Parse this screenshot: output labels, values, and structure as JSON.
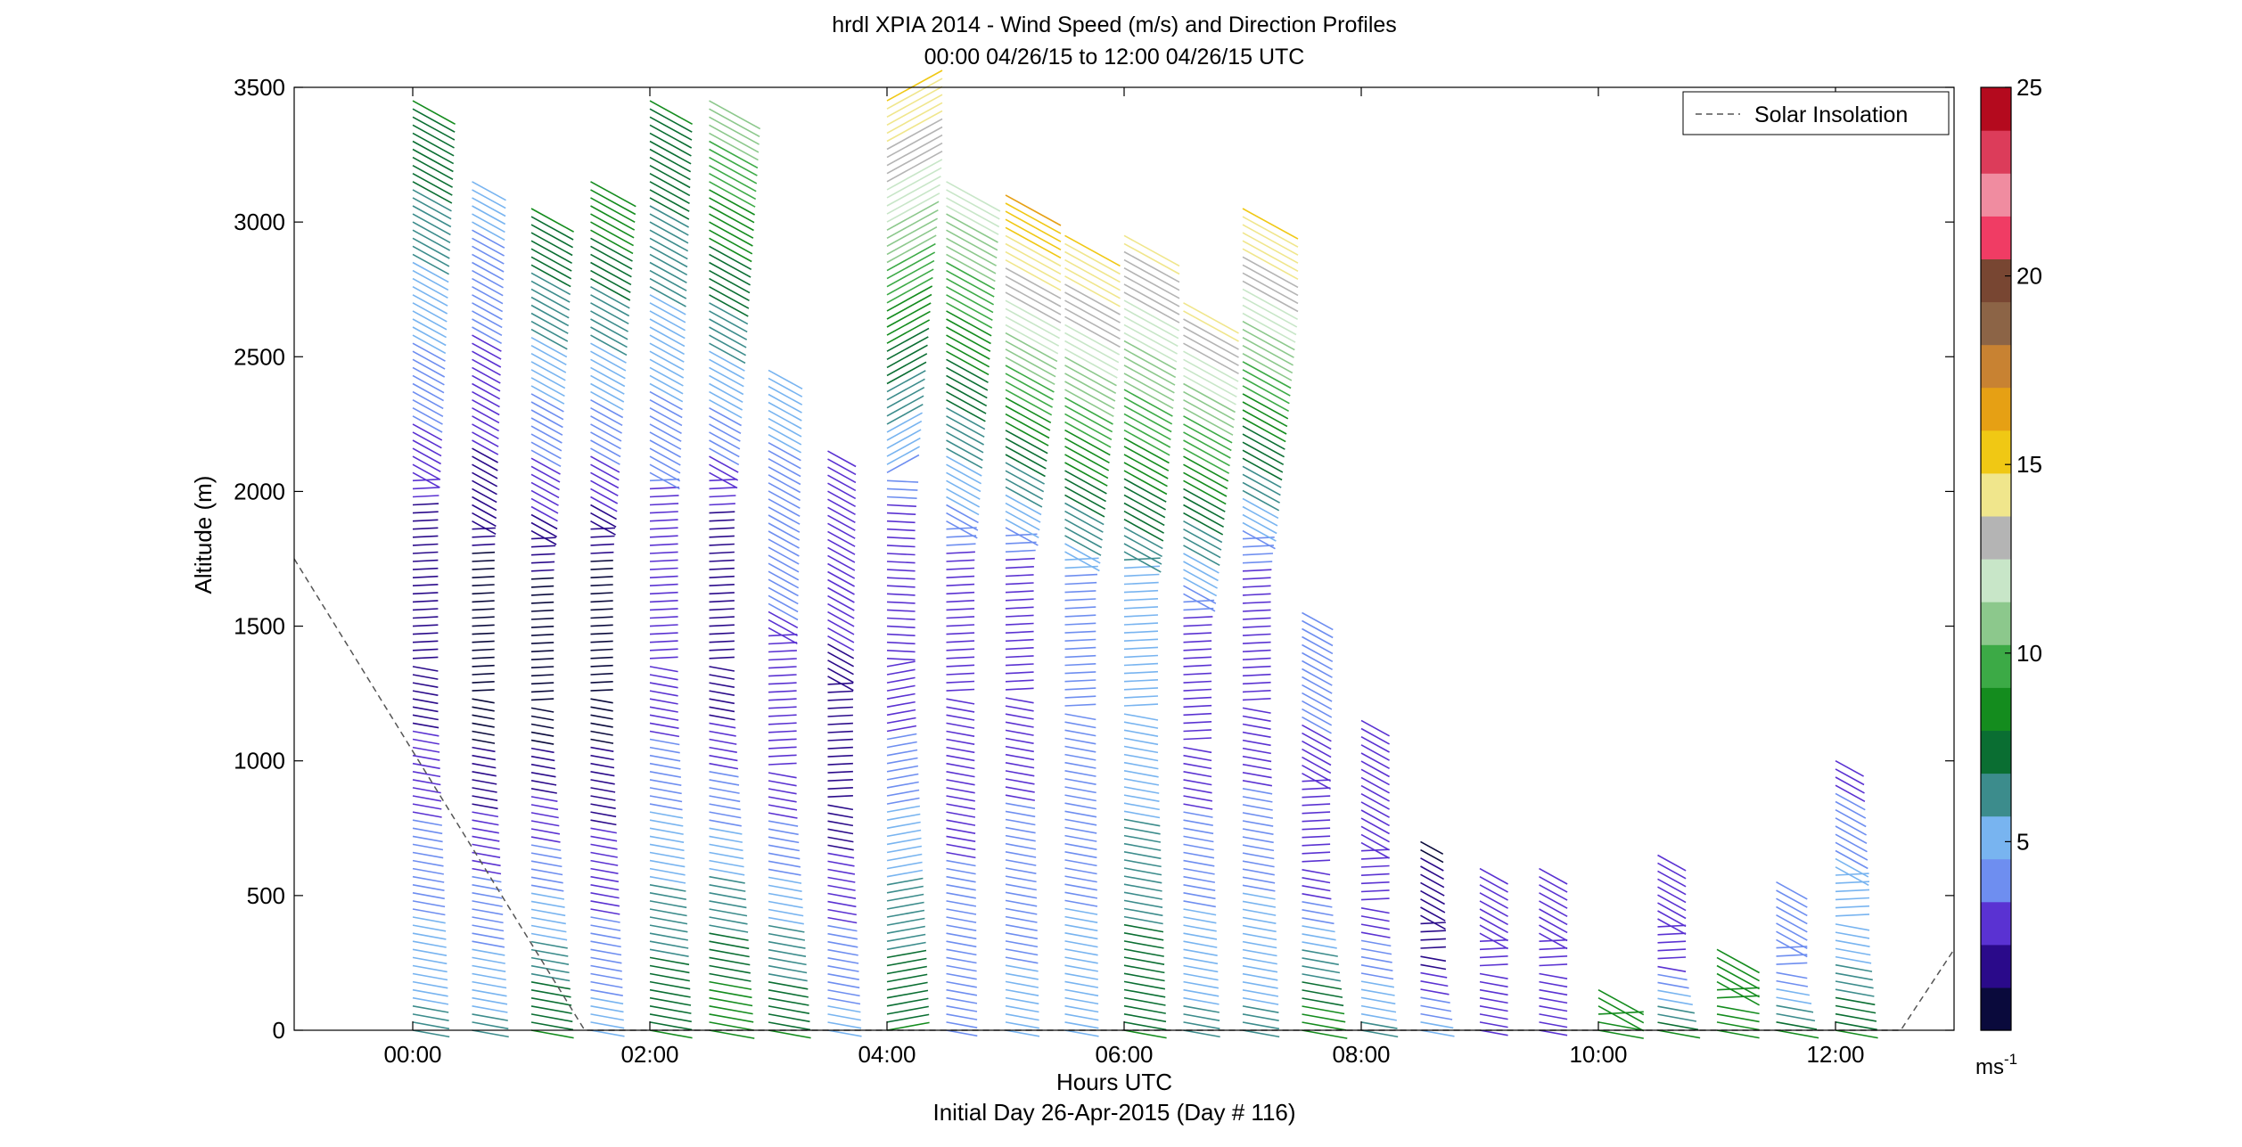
{
  "chart_data": {
    "type": "wind-barb profile",
    "title": "hrdl XPIA 2014 - Wind Speed (m/s) and Direction Profiles",
    "subtitle": "00:00 04/26/15 to 12:00 04/26/15  UTC",
    "xlabel": "Hours UTC",
    "xlabel2": "Initial Day 26-Apr-2015 (Day # 116)",
    "ylabel": "Altitude (m)",
    "xlim": [
      -1.0,
      13.0
    ],
    "ylim": [
      0,
      3500
    ],
    "xticks": [
      0,
      2,
      4,
      6,
      8,
      10,
      12
    ],
    "xtick_labels": [
      "00:00",
      "02:00",
      "04:00",
      "06:00",
      "08:00",
      "10:00",
      "12:00"
    ],
    "yticks": [
      0,
      500,
      1000,
      1500,
      2000,
      2500,
      3000,
      3500
    ],
    "ytick_labels": [
      "0",
      "500",
      "1000",
      "1500",
      "2000",
      "2500",
      "3000",
      "3500"
    ],
    "legend": {
      "entries": [
        "Solar Insolation"
      ],
      "placement": "top-right"
    },
    "colorbar": {
      "range": [
        0,
        25
      ],
      "ticks": [
        5,
        10,
        15,
        20,
        25
      ],
      "tick_labels": [
        "5",
        "10",
        "15",
        "20",
        "25"
      ],
      "unit_base": "ms",
      "unit_exp": "-1",
      "colors": [
        "#0a0a3c",
        "#2a0a8a",
        "#5a32d2",
        "#6e8ef0",
        "#78b4f0",
        "#3c8c8c",
        "#0a6e32",
        "#148c1e",
        "#3caa46",
        "#8cc88c",
        "#c8e6c8",
        "#b4b4b4",
        "#f0e68c",
        "#f0c814",
        "#e6a014",
        "#c88232",
        "#8c6446",
        "#784632",
        "#f03c64",
        "#f08ca0",
        "#dc3c5a",
        "#b40a1e"
      ]
    },
    "solar_insolation": [
      {
        "x": -1.0,
        "y": 1750
      },
      {
        "x": 1.45,
        "y": 0
      },
      {
        "x": 12.55,
        "y": 0
      },
      {
        "x": 13.0,
        "y": 300
      }
    ],
    "profiles": [
      {
        "x": 0.0,
        "top": 3450,
        "speed_lo": 6,
        "speed_mid": 2,
        "speed_hi": 8,
        "dir": 1
      },
      {
        "x": 0.5,
        "top": 3150,
        "speed_lo": 6,
        "speed_mid": 1,
        "speed_hi": 5,
        "dir": 1
      },
      {
        "x": 1.0,
        "top": 3050,
        "speed_lo": 8,
        "speed_mid": 1,
        "speed_hi": 8,
        "dir": 1
      },
      {
        "x": 1.5,
        "top": 3150,
        "speed_lo": 5,
        "speed_mid": 1,
        "speed_hi": 9,
        "dir": 1
      },
      {
        "x": 2.0,
        "top": 3450,
        "speed_lo": 8,
        "speed_mid": 3,
        "speed_hi": 8,
        "dir": 1
      },
      {
        "x": 2.5,
        "top": 3450,
        "speed_lo": 9,
        "speed_mid": 2,
        "speed_hi": 11,
        "dir": 1
      },
      {
        "x": 3.0,
        "top": 2450,
        "speed_lo": 8,
        "speed_mid": 3,
        "speed_hi": 5,
        "dir": 1
      },
      {
        "x": 3.5,
        "top": 2150,
        "speed_lo": 5,
        "speed_mid": 2,
        "speed_hi": 3,
        "dir": 1
      },
      {
        "x": 4.0,
        "top": 3450,
        "speed_lo": 8,
        "speed_mid": 3,
        "speed_hi": 15,
        "dir": -1
      },
      {
        "x": 4.5,
        "top": 3150,
        "speed_lo": 4,
        "speed_mid": 3,
        "speed_hi": 12,
        "dir": 1
      },
      {
        "x": 5.0,
        "top": 3100,
        "speed_lo": 5,
        "speed_mid": 3,
        "speed_hi": 16,
        "dir": 1
      },
      {
        "x": 5.5,
        "top": 2950,
        "speed_lo": 5,
        "speed_mid": 4,
        "speed_hi": 15,
        "dir": 1
      },
      {
        "x": 6.0,
        "top": 2950,
        "speed_lo": 8,
        "speed_mid": 5,
        "speed_hi": 14,
        "dir": 1
      },
      {
        "x": 6.5,
        "top": 2700,
        "speed_lo": 6,
        "speed_mid": 3,
        "speed_hi": 14,
        "dir": 1
      },
      {
        "x": 7.0,
        "top": 3050,
        "speed_lo": 6,
        "speed_mid": 3,
        "speed_hi": 15,
        "dir": 1
      },
      {
        "x": 7.5,
        "top": 1550,
        "speed_lo": 9,
        "speed_mid": 3,
        "speed_hi": 4,
        "dir": 1
      },
      {
        "x": 8.0,
        "top": 1150,
        "speed_lo": 6,
        "speed_mid": 3,
        "speed_hi": 3,
        "dir": 1
      },
      {
        "x": 8.5,
        "top": 700,
        "speed_lo": 5,
        "speed_mid": 2,
        "speed_hi": 1,
        "dir": 1
      },
      {
        "x": 9.0,
        "top": 600,
        "speed_lo": 3,
        "speed_mid": 3,
        "speed_hi": 3,
        "dir": 1
      },
      {
        "x": 9.5,
        "top": 600,
        "speed_lo": 3,
        "speed_mid": 3,
        "speed_hi": 3,
        "dir": 1
      },
      {
        "x": 10.0,
        "top": 150,
        "speed_lo": 9,
        "speed_mid": 9,
        "speed_hi": 9,
        "dir": 1
      },
      {
        "x": 10.5,
        "top": 650,
        "speed_lo": 8,
        "speed_mid": 3,
        "speed_hi": 3,
        "dir": 1
      },
      {
        "x": 11.0,
        "top": 300,
        "speed_lo": 8,
        "speed_mid": 8,
        "speed_hi": 8,
        "dir": 1
      },
      {
        "x": 11.5,
        "top": 550,
        "speed_lo": 8,
        "speed_mid": 4,
        "speed_hi": 4,
        "dir": 1
      },
      {
        "x": 12.0,
        "top": 1000,
        "speed_lo": 8,
        "speed_mid": 5,
        "speed_hi": 3,
        "dir": 1
      }
    ]
  }
}
